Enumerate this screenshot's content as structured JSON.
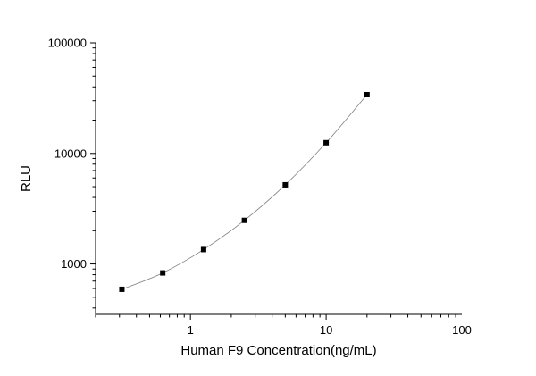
{
  "chart_data": {
    "type": "scatter",
    "title": "",
    "xlabel": "Human F9 Concentration(ng/mL)",
    "ylabel": "RLU",
    "x_scale": "log",
    "y_scale": "log",
    "xlim": [
      0.2,
      100
    ],
    "ylim": [
      350,
      100000
    ],
    "x_ticks": [
      {
        "value": 1,
        "label": "1"
      },
      {
        "value": 10,
        "label": "10"
      },
      {
        "value": 100,
        "label": "100"
      }
    ],
    "y_ticks": [
      {
        "value": 1000,
        "label": "1000"
      },
      {
        "value": 10000,
        "label": "10000"
      },
      {
        "value": 100000,
        "label": "100000"
      }
    ],
    "grid": false,
    "legend": "none",
    "series": [
      {
        "x": [
          0.3125,
          0.625,
          1.25,
          2.5,
          5,
          10,
          20
        ],
        "y": [
          590,
          830,
          1350,
          2480,
          5200,
          12500,
          34000
        ],
        "marker": "square",
        "fit_curve": true
      }
    ],
    "colors": {
      "marker": "#000000",
      "curve": "#808080",
      "axis": "#000000"
    }
  }
}
